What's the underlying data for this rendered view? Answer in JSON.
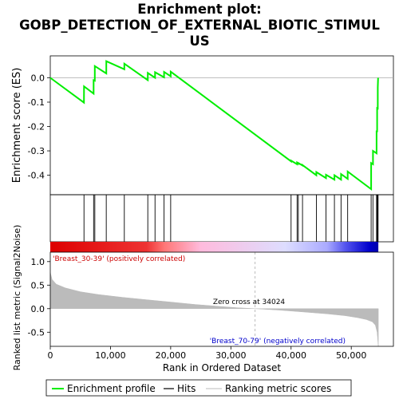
{
  "chart_data": {
    "type": "line",
    "title_lines": [
      "Enrichment plot:",
      "GOBP_DETECTION_OF_EXTERNAL_BIOTIC_STIMUL",
      "US"
    ],
    "es_panel": {
      "ylabel": "Enrichment score (ES)",
      "ylim": [
        -0.48,
        0.09
      ],
      "yticks": [
        0.0,
        -0.1,
        -0.2,
        -0.3,
        -0.4
      ],
      "ytick_labels": [
        "0.0",
        "-0.1",
        "-0.2",
        "-0.3",
        "-0.4"
      ],
      "series": [
        {
          "name": "Enrichment profile",
          "color": "#00ee00",
          "x": [
            0,
            5600,
            5601,
            7200,
            7201,
            7400,
            7401,
            9300,
            9301,
            12300,
            12301,
            16200,
            16201,
            17400,
            17401,
            18900,
            18901,
            20000,
            20001,
            40000,
            40001,
            41000,
            41001,
            41200,
            41201,
            41900,
            41901,
            44200,
            44201,
            45800,
            45801,
            47200,
            47201,
            48300,
            48301,
            49400,
            49401,
            53300,
            53301,
            53600,
            53601,
            54200,
            54201,
            54300,
            54301,
            54400,
            54401,
            54450
          ],
          "y": [
            0.0,
            -0.102,
            -0.035,
            -0.065,
            -0.01,
            -0.012,
            0.048,
            0.018,
            0.068,
            0.035,
            0.058,
            -0.01,
            0.02,
            0.0,
            0.023,
            0.002,
            0.024,
            0.006,
            0.025,
            -0.343,
            -0.34,
            -0.355,
            -0.348,
            -0.352,
            -0.35,
            -0.36,
            -0.358,
            -0.4,
            -0.387,
            -0.412,
            -0.398,
            -0.418,
            -0.4,
            -0.418,
            -0.395,
            -0.415,
            -0.385,
            -0.457,
            -0.35,
            -0.355,
            -0.3,
            -0.31,
            -0.22,
            -0.22,
            -0.12,
            -0.13,
            -0.04,
            0.0
          ]
        }
      ]
    },
    "hits": {
      "x": [
        5600,
        7200,
        7400,
        9300,
        12300,
        16200,
        17400,
        18900,
        20000,
        40000,
        41000,
        41200,
        41900,
        44200,
        45800,
        47200,
        48300,
        49400,
        53300,
        53600,
        54200,
        54300,
        54400,
        54450
      ],
      "color": "#000000"
    },
    "ranked_panel": {
      "ylabel": "Ranked list metric (Signal2Noise)",
      "ylim": [
        -0.8,
        1.2
      ],
      "yticks": [
        1.0,
        0.5,
        0.0,
        -0.5
      ],
      "ytick_labels": [
        "1.0",
        "0.5",
        "0.0",
        "-0.5"
      ],
      "series": [
        {
          "name": "Ranking metric scores",
          "color": "#bbbbbb",
          "x": [
            0,
            300,
            1000,
            2500,
            5000,
            8000,
            12000,
            16000,
            20000,
            24000,
            28000,
            31000,
            34024,
            38000,
            42000,
            46000,
            49000,
            51000,
            52500,
            53500,
            54000,
            54300,
            54500
          ],
          "y": [
            0.77,
            0.62,
            0.52,
            0.44,
            0.36,
            0.3,
            0.24,
            0.19,
            0.14,
            0.09,
            0.05,
            0.02,
            0.0,
            -0.03,
            -0.07,
            -0.11,
            -0.15,
            -0.19,
            -0.23,
            -0.28,
            -0.35,
            -0.5,
            -0.8
          ]
        }
      ],
      "zero_cross_label": "Zero cross at 34024",
      "zero_cross_x": 34024,
      "positive_label": "'Breast_30-39' (positively correlated)",
      "negative_label": "'Breast_70-79' (negatively correlated)"
    },
    "xaxis": {
      "label": "Rank in Ordered Dataset",
      "xlim": [
        0,
        57000
      ],
      "ticks": [
        0,
        10000,
        20000,
        30000,
        40000,
        50000
      ],
      "tick_labels": [
        "0",
        "10,000",
        "20,000",
        "30,000",
        "40,000",
        "50,000"
      ]
    },
    "gradient_bar": {
      "stops": [
        {
          "x": 0,
          "color": "#dd0000"
        },
        {
          "x": 16000,
          "color": "#ee3333"
        },
        {
          "x": 19000,
          "color": "#ff7777"
        },
        {
          "x": 25000,
          "color": "#ffbbdd"
        },
        {
          "x": 39000,
          "color": "#ddddff"
        },
        {
          "x": 46000,
          "color": "#aaaaff"
        },
        {
          "x": 49000,
          "color": "#5555ee"
        },
        {
          "x": 53000,
          "color": "#0000cc"
        },
        {
          "x": 54500,
          "color": "#0000aa"
        }
      ]
    },
    "legend": {
      "placement": "bottom",
      "items": [
        {
          "label": "Enrichment profile",
          "color": "#00ee00"
        },
        {
          "label": "Hits",
          "color": "#000000"
        },
        {
          "label": "Ranking metric scores",
          "color": "#bbbbbb"
        }
      ]
    },
    "grid": false
  }
}
